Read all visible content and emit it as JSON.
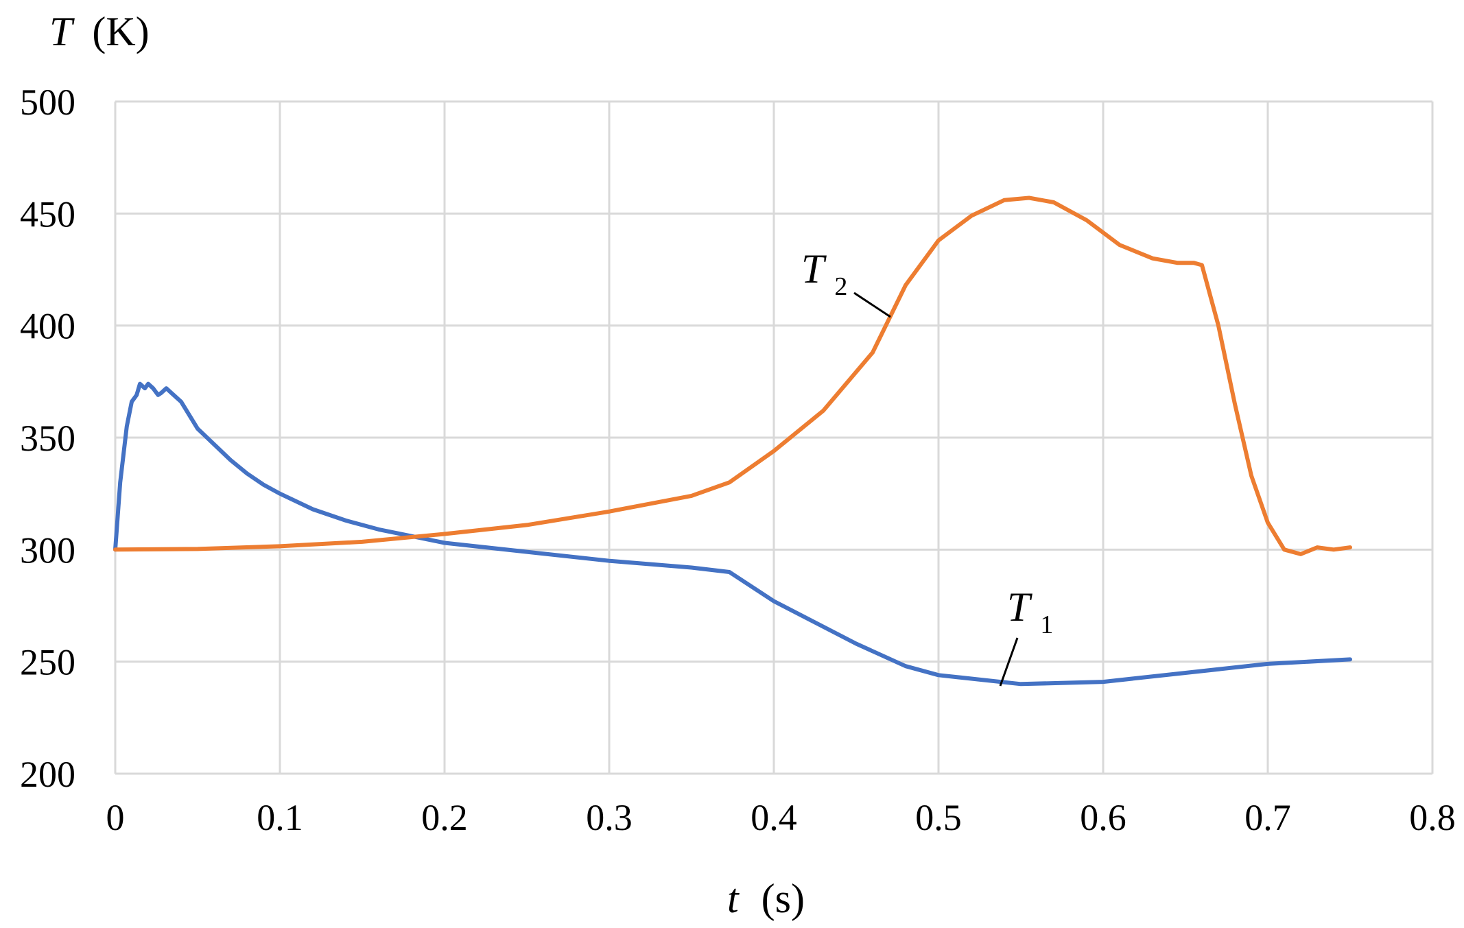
{
  "chart_data": {
    "type": "line",
    "ylabel_var": "T",
    "ylabel_unit": "(K)",
    "xlabel_var": "t",
    "xlabel_unit": "(s)",
    "xlim": [
      0,
      0.8
    ],
    "ylim": [
      200,
      500
    ],
    "x_ticks": [
      "0",
      "0.1",
      "0.2",
      "0.3",
      "0.4",
      "0.5",
      "0.6",
      "0.7",
      "0.8"
    ],
    "y_ticks": [
      "500",
      "450",
      "400",
      "350",
      "300",
      "250",
      "200"
    ],
    "grid": true,
    "colors": {
      "T1": "#4472c4",
      "T2": "#ed7d31",
      "grid": "#d9d9d9"
    },
    "series": [
      {
        "name": "T1",
        "var": "T",
        "sub": "1",
        "points": [
          [
            0,
            300
          ],
          [
            0.003,
            330
          ],
          [
            0.007,
            355
          ],
          [
            0.01,
            366
          ],
          [
            0.013,
            369
          ],
          [
            0.015,
            374
          ],
          [
            0.018,
            372
          ],
          [
            0.02,
            374
          ],
          [
            0.023,
            372
          ],
          [
            0.026,
            369
          ],
          [
            0.028,
            370
          ],
          [
            0.031,
            372
          ],
          [
            0.034,
            370
          ],
          [
            0.04,
            366
          ],
          [
            0.045,
            360
          ],
          [
            0.05,
            354
          ],
          [
            0.06,
            347
          ],
          [
            0.07,
            340
          ],
          [
            0.08,
            334
          ],
          [
            0.09,
            329
          ],
          [
            0.1,
            325
          ],
          [
            0.12,
            318
          ],
          [
            0.14,
            313
          ],
          [
            0.16,
            309
          ],
          [
            0.18,
            306
          ],
          [
            0.2,
            303
          ],
          [
            0.25,
            299
          ],
          [
            0.3,
            295
          ],
          [
            0.35,
            292
          ],
          [
            0.373,
            290
          ],
          [
            0.4,
            277
          ],
          [
            0.45,
            258
          ],
          [
            0.48,
            248
          ],
          [
            0.5,
            244
          ],
          [
            0.55,
            240
          ],
          [
            0.6,
            241
          ],
          [
            0.65,
            245
          ],
          [
            0.7,
            249
          ],
          [
            0.75,
            251
          ]
        ]
      },
      {
        "name": "T2",
        "var": "T",
        "sub": "2",
        "points": [
          [
            0,
            300
          ],
          [
            0.05,
            300.3
          ],
          [
            0.1,
            301.5
          ],
          [
            0.15,
            303.5
          ],
          [
            0.2,
            307
          ],
          [
            0.25,
            311
          ],
          [
            0.3,
            317
          ],
          [
            0.35,
            324
          ],
          [
            0.373,
            330
          ],
          [
            0.4,
            344
          ],
          [
            0.43,
            362
          ],
          [
            0.46,
            388
          ],
          [
            0.48,
            418
          ],
          [
            0.5,
            438
          ],
          [
            0.52,
            449
          ],
          [
            0.54,
            456
          ],
          [
            0.555,
            457
          ],
          [
            0.57,
            455
          ],
          [
            0.59,
            447
          ],
          [
            0.61,
            436
          ],
          [
            0.63,
            430
          ],
          [
            0.645,
            428
          ],
          [
            0.655,
            428
          ],
          [
            0.66,
            427
          ],
          [
            0.67,
            400
          ],
          [
            0.68,
            365
          ],
          [
            0.69,
            333
          ],
          [
            0.7,
            312
          ],
          [
            0.71,
            300
          ],
          [
            0.72,
            298
          ],
          [
            0.73,
            301
          ],
          [
            0.74,
            300
          ],
          [
            0.75,
            301
          ]
        ]
      }
    ],
    "annotations": [
      {
        "series": "T1",
        "var": "T",
        "sub": "1"
      },
      {
        "series": "T2",
        "var": "T",
        "sub": "2"
      }
    ]
  }
}
